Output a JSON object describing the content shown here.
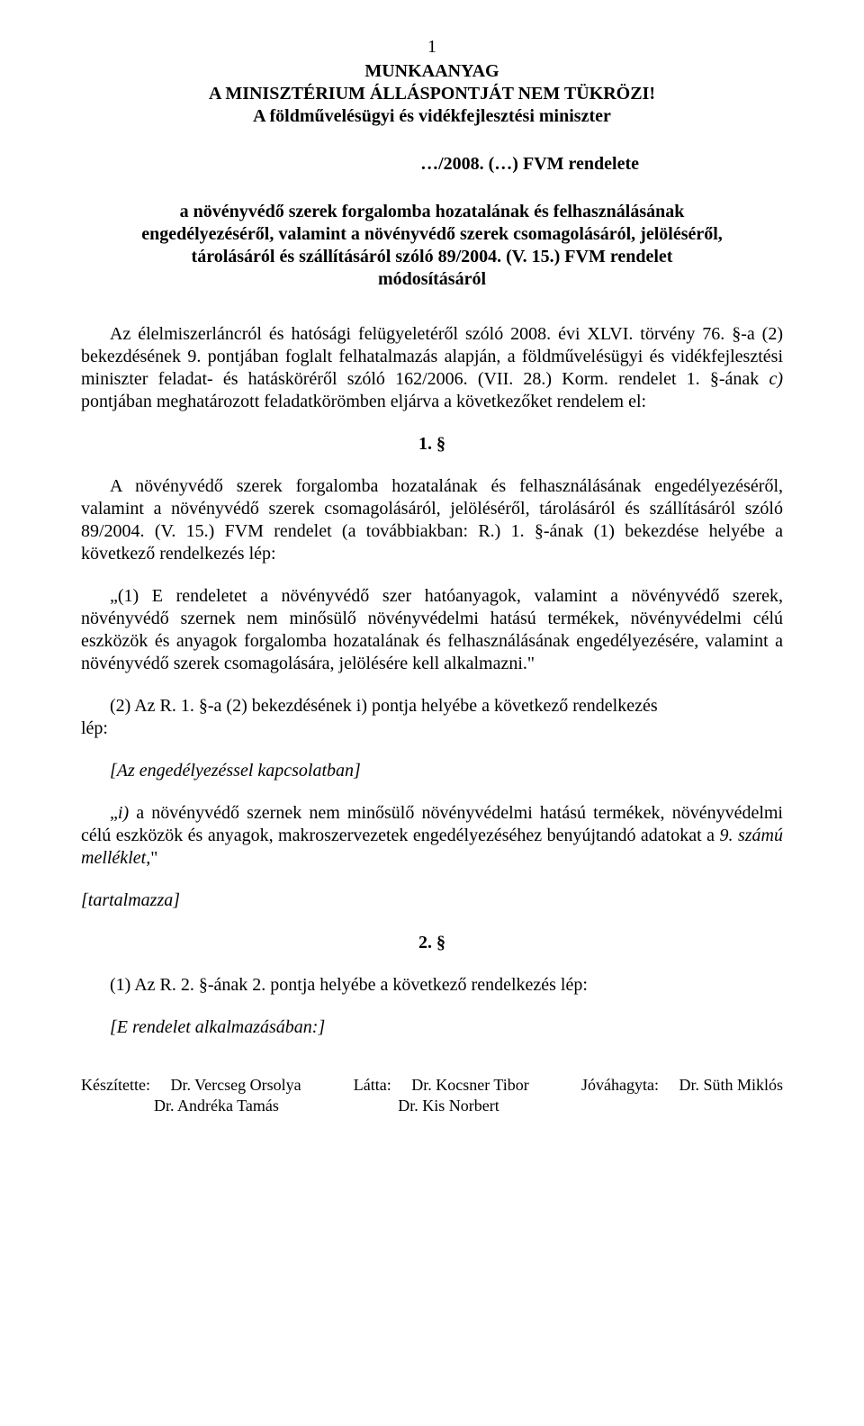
{
  "page_number": "1",
  "header": {
    "line1": "MUNKAANYAG",
    "line2": "A MINISZTÉRIUM ÁLLÁSPONTJÁT NEM TÜKRÖZI!",
    "line3": "A földművelésügyi és vidékfejlesztési miniszter"
  },
  "decree_ref": "…/2008. (…) FVM rendelete",
  "title": {
    "line1": "a növényvédő szerek forgalomba hozatalának és felhasználásának",
    "line2": "engedélyezéséről, valamint a növényvédő szerek csomagolásáról, jelöléséről,",
    "line3": "tárolásáról és szállításáról szóló 89/2004. (V. 15.) FVM rendelet",
    "line4": "módosításáról"
  },
  "preamble": "Az élelmiszerláncról és hatósági felügyeletéről szóló 2008. évi XLVI. törvény 76. §-a (2) bekezdésének 9. pontjában foglalt felhatalmazás alapján, a földművelésügyi és vidékfejlesztési miniszter feladat- és hatásköréről szóló 162/2006. (VII. 28.) Korm. rendelet 1. §-ának c) pontjában meghatározott feladatkörömben eljárva a következőket rendelem el:",
  "section1": {
    "num": "1. §",
    "para1": "A növényvédő szerek forgalomba hozatalának és felhasználásának engedélyezéséről, valamint a növényvédő szerek csomagolásáról, jelöléséről, tárolásáról és szállításáról szóló 89/2004. (V. 15.) FVM rendelet (a továbbiakban: R.) 1. §-ának (1) bekezdése helyébe a következő rendelkezés lép:",
    "quote1": "„(1) E rendeletet a növényvédő szer hatóanyagok, valamint a növényvédő szerek, növényvédő szernek nem minősülő növényvédelmi hatású termékek, növényvédelmi célú eszközök és anyagok forgalomba hozatalának és felhasználásának engedélyezésére, valamint a növényvédő szerek csomagolására, jelölésére kell alkalmazni.\"",
    "lep_label": "lép:",
    "para2_rest": "(2) Az R. 1. §-a (2) bekezdésének i) pontja helyébe a következő rendelkezés",
    "bracket1": "[Az engedélyezéssel kapcsolatban]",
    "quote2": "„i) a növényvédő szernek nem minősülő növényvédelmi hatású termékek, növényvédelmi célú eszközök és anyagok, makroszervezetek engedélyezéséhez benyújtandó adatokat a 9. számú melléklet,\"",
    "bracket2": "[tartalmazza]"
  },
  "section2": {
    "num": "2. §",
    "para1": "(1) Az R. 2. §-ának 2. pontja helyébe a következő rendelkezés lép:",
    "bracket1": "[E rendelet alkalmazásában:]"
  },
  "footer": {
    "made_label": "Készítette:",
    "made_name1": "Dr. Vercseg Orsolya",
    "made_name2": "Dr. Andréka Tamás",
    "seen_label": "Látta:",
    "seen_name1": "Dr. Kocsner Tibor",
    "seen_name2": "Dr. Kis Norbert",
    "approved_label": "Jóváhagyta:",
    "approved_name1": "Dr. Süth Miklós"
  },
  "colors": {
    "text": "#000000",
    "background": "#ffffff"
  },
  "typography": {
    "font_family": "Times New Roman",
    "body_fontsize_pt": 15,
    "footer_fontsize_pt": 13
  }
}
